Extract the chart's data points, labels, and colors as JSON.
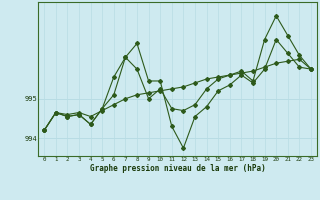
{
  "title": "Graphe pression niveau de la mer (hPa)",
  "bg_color": "#ceeaf0",
  "grid_h_color": "#b8dce4",
  "grid_v_color": "#b8dce4",
  "line_color": "#2d5a1b",
  "x_ticks": [
    0,
    1,
    2,
    3,
    4,
    5,
    6,
    7,
    8,
    9,
    10,
    11,
    12,
    13,
    14,
    15,
    16,
    17,
    18,
    19,
    20,
    21,
    22,
    23
  ],
  "ylim": [
    993.55,
    997.45
  ],
  "yticks": [
    994,
    995
  ],
  "series": [
    [
      994.2,
      994.65,
      994.6,
      994.65,
      994.55,
      994.7,
      994.85,
      995.0,
      995.1,
      995.15,
      995.2,
      995.25,
      995.3,
      995.4,
      995.5,
      995.55,
      995.6,
      995.65,
      995.7,
      995.8,
      995.9,
      995.95,
      996.0,
      995.75
    ],
    [
      994.2,
      994.65,
      994.55,
      994.6,
      994.35,
      994.75,
      995.55,
      996.05,
      995.75,
      995.0,
      995.25,
      994.75,
      994.7,
      994.85,
      995.25,
      995.5,
      995.6,
      995.7,
      995.45,
      996.5,
      997.1,
      996.6,
      996.1,
      995.75
    ],
    [
      994.2,
      994.65,
      994.55,
      994.6,
      994.35,
      994.75,
      995.1,
      996.05,
      996.4,
      995.45,
      995.45,
      994.3,
      993.75,
      994.55,
      994.8,
      995.2,
      995.35,
      995.6,
      995.4,
      995.75,
      996.5,
      996.15,
      995.8,
      995.75
    ]
  ]
}
